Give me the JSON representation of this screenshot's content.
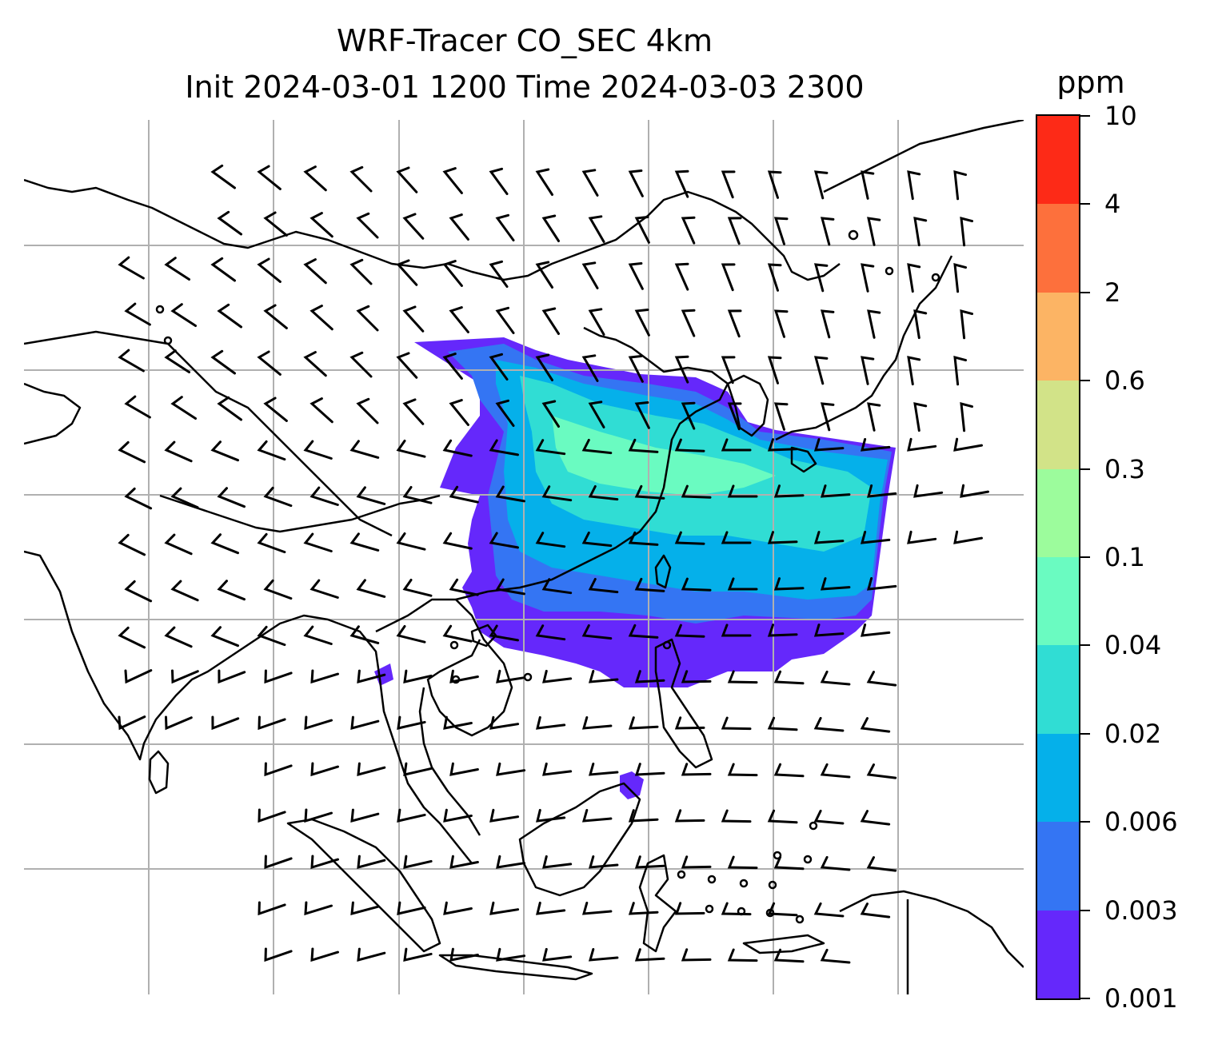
{
  "title_line1": "WRF-Tracer CO_SEC 4km",
  "title_line2": "Init 2024-03-01 1200 Time 2024-03-03 2300",
  "colorbar": {
    "unit": "ppm",
    "levels": [
      "0.001",
      "0.003",
      "0.006",
      "0.02",
      "0.04",
      "0.1",
      "0.3",
      "0.6",
      "2",
      "4",
      "10"
    ],
    "colors": [
      "#6528fb",
      "#3475f3",
      "#05b0ea",
      "#30ddd4",
      "#6afbc1",
      "#9cfc9c",
      "#d2e388",
      "#fcb464",
      "#fd703c",
      "#fd2a17"
    ]
  },
  "map": {
    "projection": "Lambert conformal",
    "region": "South and East Asia",
    "coastline_color": "#000000",
    "gridline_color": "#b0b0b0",
    "wind_barb_color": "#000000"
  }
}
